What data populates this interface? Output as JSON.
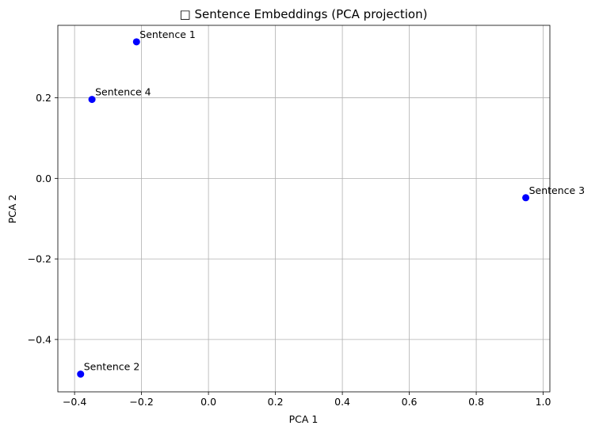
{
  "chart_data": {
    "type": "scatter",
    "title": "□ Sentence Embeddings (PCA projection)",
    "xlabel": "PCA 1",
    "ylabel": "PCA 2",
    "xlim": [
      -0.45,
      1.02
    ],
    "ylim": [
      -0.53,
      0.38
    ],
    "xticks": [
      -0.4,
      -0.2,
      0.0,
      0.2,
      0.4,
      0.6,
      0.8,
      1.0
    ],
    "yticks": [
      -0.4,
      -0.2,
      0.0,
      0.2
    ],
    "xtick_labels": [
      "−0.4",
      "−0.2",
      "0.0",
      "0.2",
      "0.4",
      "0.6",
      "0.8",
      "1.0"
    ],
    "ytick_labels": [
      "−0.4",
      "−0.2",
      "0.0",
      "0.2"
    ],
    "grid": true,
    "point_color": "#0000ff",
    "grid_color": "#b0b0b0",
    "points": [
      {
        "label": "Sentence 1",
        "x": -0.215,
        "y": 0.339
      },
      {
        "label": "Sentence 2",
        "x": -0.382,
        "y": -0.486
      },
      {
        "label": "Sentence 3",
        "x": 0.948,
        "y": -0.048
      },
      {
        "label": "Sentence 4",
        "x": -0.348,
        "y": 0.196
      }
    ]
  }
}
